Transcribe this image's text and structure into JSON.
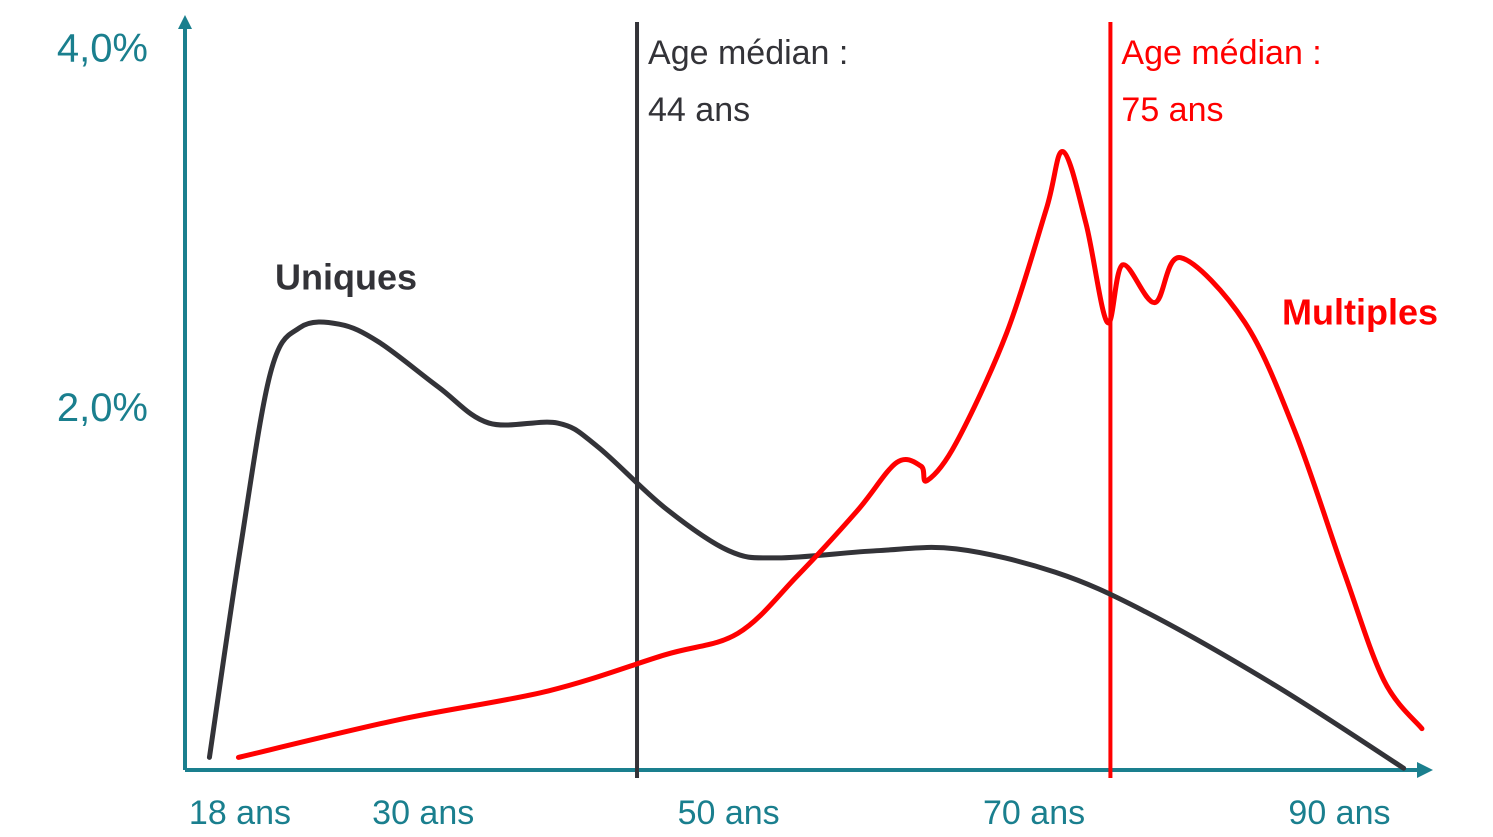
{
  "chart_data": {
    "type": "line",
    "xlim": [
      14.4,
      95.6
    ],
    "ylim": [
      0,
      4.2
    ],
    "xticks": [
      {
        "value": 18,
        "label": "18 ans"
      },
      {
        "value": 30,
        "label": "30 ans"
      },
      {
        "value": 50,
        "label": "50 ans"
      },
      {
        "value": 70,
        "label": "70 ans"
      },
      {
        "value": 90,
        "label": "90 ans"
      }
    ],
    "yticks": [
      {
        "value": 2,
        "label": "2,0%"
      },
      {
        "value": 4,
        "label": "4,0%"
      }
    ],
    "grid": false,
    "axis_color": "#1a7f8e",
    "series": [
      {
        "name": "Uniques",
        "color": "#333338",
        "x": [
          16.0,
          18.0,
          20.0,
          21.9,
          24.5,
          27.1,
          31.0,
          34.3,
          38.8,
          41.4,
          45.8,
          50.0,
          53.2,
          59.7,
          64.9,
          71.4,
          77.3,
          85.8,
          94.2
        ],
        "values": [
          0.07,
          1.22,
          2.21,
          2.46,
          2.48,
          2.38,
          2.13,
          1.93,
          1.93,
          1.8,
          1.46,
          1.22,
          1.18,
          1.22,
          1.23,
          1.1,
          0.88,
          0.47,
          0.01
        ]
      },
      {
        "name": "Multiples",
        "color": "#ff0000",
        "x": [
          17.9,
          28.4,
          38.2,
          45.8,
          50.6,
          54.5,
          58.4,
          61.0,
          62.6,
          63.0,
          64.9,
          68.2,
          70.8,
          71.9,
          73.4,
          74.8,
          75.8,
          77.9,
          79.6,
          83.8,
          87.1,
          90.3,
          92.9,
          95.4
        ],
        "values": [
          0.07,
          0.28,
          0.44,
          0.64,
          0.76,
          1.08,
          1.44,
          1.71,
          1.69,
          1.61,
          1.82,
          2.43,
          3.12,
          3.44,
          3.04,
          2.49,
          2.81,
          2.6,
          2.85,
          2.49,
          1.88,
          1.1,
          0.5,
          0.23
        ]
      }
    ],
    "median_lines": [
      {
        "x": 44,
        "color": "#333338",
        "label": [
          "Age médian :",
          "44 ans"
        ]
      },
      {
        "x": 75,
        "color": "#ff0000",
        "label": [
          "Age médian :",
          "75 ans"
        ]
      }
    ]
  }
}
